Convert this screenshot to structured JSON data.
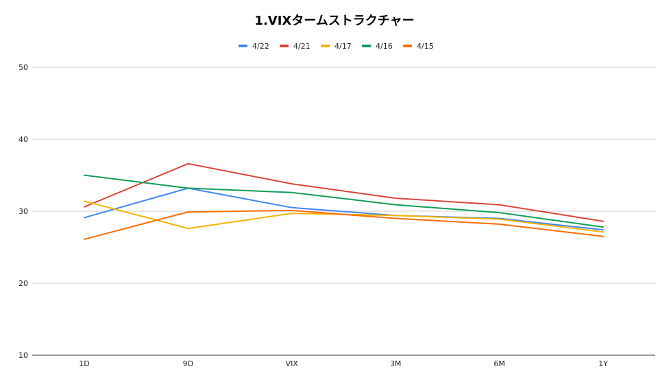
{
  "chart_data": {
    "type": "line",
    "title": "1.VIXタームストラクチャー",
    "categories": [
      "1D",
      "9D",
      "VIX",
      "3M",
      "6M",
      "1Y"
    ],
    "ylim": [
      10,
      50
    ],
    "yticks": [
      10,
      20,
      30,
      40,
      50
    ],
    "grid": true,
    "legend_position": "top",
    "series": [
      {
        "name": "4/22",
        "color": "#4285f4",
        "values": [
          29.1,
          33.2,
          30.5,
          29.4,
          29.0,
          27.4
        ]
      },
      {
        "name": "4/21",
        "color": "#db4437",
        "values": [
          30.6,
          36.6,
          33.8,
          31.8,
          30.9,
          28.6
        ]
      },
      {
        "name": "4/17",
        "color": "#f4b400",
        "values": [
          31.4,
          27.6,
          29.7,
          29.4,
          28.9,
          27.1
        ]
      },
      {
        "name": "4/16",
        "color": "#0f9d58",
        "values": [
          35.0,
          33.2,
          32.6,
          30.9,
          29.8,
          27.8
        ]
      },
      {
        "name": "4/15",
        "color": "#ff6d01",
        "values": [
          26.1,
          29.9,
          30.1,
          29.0,
          28.2,
          26.5
        ]
      }
    ]
  }
}
